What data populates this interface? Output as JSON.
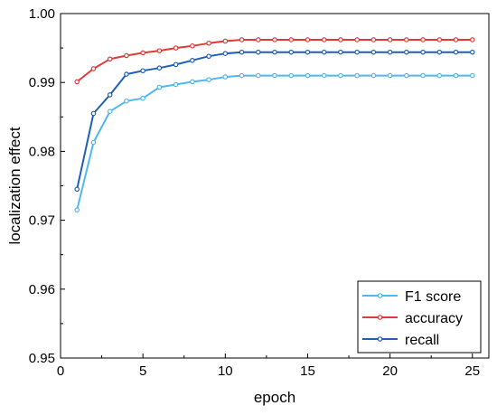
{
  "chart_data": {
    "type": "line",
    "xlabel": "epoch",
    "ylabel": "localization effect",
    "xlim": [
      0,
      26
    ],
    "ylim": [
      0.95,
      1.0
    ],
    "xticks": [
      0,
      5,
      10,
      15,
      20,
      25
    ],
    "yticks": [
      0.95,
      0.96,
      0.97,
      0.98,
      0.99,
      1.0
    ],
    "xtick_labels": [
      "0",
      "5",
      "10",
      "15",
      "20",
      "25"
    ],
    "ytick_labels": [
      "0.95",
      "0.96",
      "0.97",
      "0.98",
      "0.99",
      "1.00"
    ],
    "grid": false,
    "legend_position": "bottom-right",
    "x": [
      1,
      2,
      3,
      4,
      5,
      6,
      7,
      8,
      9,
      10,
      11,
      12,
      13,
      14,
      15,
      16,
      17,
      18,
      19,
      20,
      21,
      22,
      23,
      24,
      25
    ],
    "series": [
      {
        "name": "F1 score",
        "color": "#4FB8EE",
        "values": [
          0.9715,
          0.9813,
          0.9858,
          0.9873,
          0.9877,
          0.9893,
          0.9897,
          0.9901,
          0.9904,
          0.9908,
          0.991,
          0.991,
          0.991,
          0.991,
          0.991,
          0.991,
          0.991,
          0.991,
          0.991,
          0.991,
          0.991,
          0.991,
          0.991,
          0.991,
          0.991
        ]
      },
      {
        "name": "accuracy",
        "color": "#E03A3A",
        "values": [
          0.9901,
          0.992,
          0.9934,
          0.9939,
          0.9943,
          0.9946,
          0.995,
          0.9953,
          0.9957,
          0.996,
          0.9962,
          0.9962,
          0.9962,
          0.9962,
          0.9962,
          0.9962,
          0.9962,
          0.9962,
          0.9962,
          0.9962,
          0.9962,
          0.9962,
          0.9962,
          0.9962,
          0.9962
        ]
      },
      {
        "name": "recall",
        "color": "#1F5FB5",
        "values": [
          0.9745,
          0.9855,
          0.9882,
          0.9912,
          0.9917,
          0.9921,
          0.9926,
          0.9932,
          0.9938,
          0.9942,
          0.9944,
          0.9944,
          0.9944,
          0.9944,
          0.9944,
          0.9944,
          0.9944,
          0.9944,
          0.9944,
          0.9944,
          0.9944,
          0.9944,
          0.9944,
          0.9944,
          0.9944
        ]
      }
    ]
  }
}
